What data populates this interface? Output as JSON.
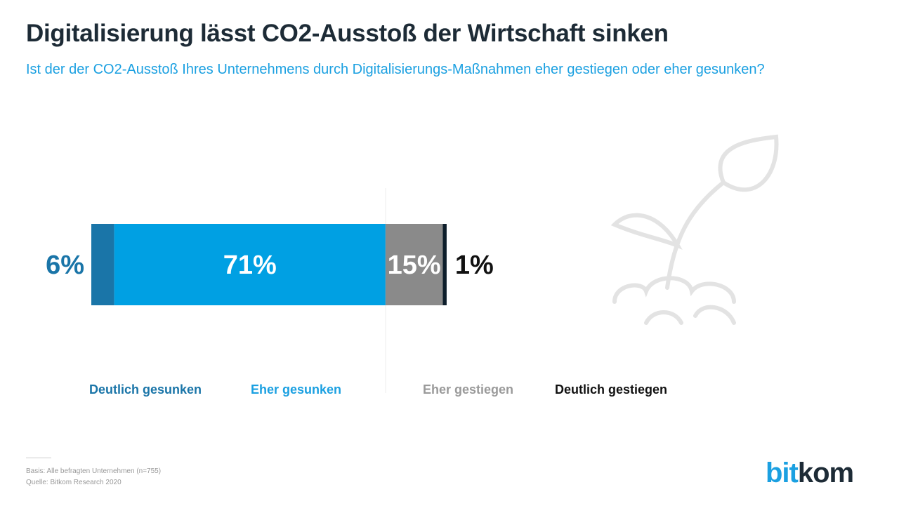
{
  "header": {
    "title": "Digitalisierung lässt CO2-Ausstoß der Wirtschaft sinken",
    "subtitle": "Ist der der CO2-Ausstoß Ihres Unternehmens durch Digitalisierungs-Maßnahmen eher gestiegen oder eher gesunken?"
  },
  "chart_data": {
    "type": "bar",
    "orientation": "horizontal-stacked",
    "categories": [
      "Deutlich gesunken",
      "Eher gesunken",
      "Eher gestiegen",
      "Deutlich gestiegen"
    ],
    "values": [
      6,
      71,
      15,
      1
    ],
    "labels": [
      "6%",
      "71%",
      "15%",
      "1%"
    ],
    "colors": [
      "#1a75a8",
      "#00a0e3",
      "#8a8a8a",
      "#0d1e2b"
    ],
    "legend_colors": [
      "#1a75a8",
      "#1ba0e1",
      "#9a9a9a",
      "#111111"
    ],
    "unit": "%"
  },
  "footer": {
    "basis": "Basis: Alle befragten Unternehmen (n=755)",
    "source": "Quelle: Bitkom Research 2020"
  },
  "logo": {
    "part1": "bit",
    "part2": "kom"
  }
}
